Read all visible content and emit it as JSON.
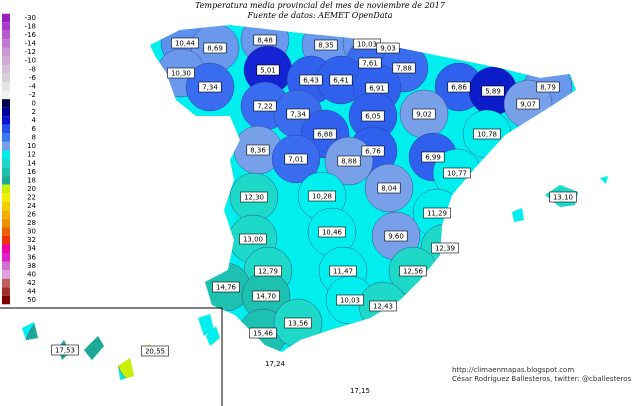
{
  "header": {
    "title": "Temperatura media provincial del mes de noviembre de 2017",
    "subtitle": "Fuente de datos: AEMET OpenData"
  },
  "legend": [
    {
      "value": -30,
      "color": "#9a1fc0"
    },
    {
      "value": -18,
      "color": "#a83cc8"
    },
    {
      "value": -16,
      "color": "#b85ad0"
    },
    {
      "value": -14,
      "color": "#c478d4"
    },
    {
      "value": -12,
      "color": "#cc94d6"
    },
    {
      "value": -10,
      "color": "#d2acd6"
    },
    {
      "value": -8,
      "color": "#d6c0d6"
    },
    {
      "value": -6,
      "color": "#d8d0d8"
    },
    {
      "value": -4,
      "color": "#e4e4e4"
    },
    {
      "value": -2,
      "color": "#f2f2f2"
    },
    {
      "value": 0,
      "color": "#00004a"
    },
    {
      "value": 2,
      "color": "#00009c"
    },
    {
      "value": 4,
      "color": "#0a14d2"
    },
    {
      "value": 6,
      "color": "#2450ee"
    },
    {
      "value": 8,
      "color": "#3c78f0"
    },
    {
      "value": 10,
      "color": "#78a0e8"
    },
    {
      "value": 12,
      "color": "#00eeee"
    },
    {
      "value": 14,
      "color": "#1ed8c8"
    },
    {
      "value": 16,
      "color": "#1ec0b0"
    },
    {
      "value": 18,
      "color": "#20a896"
    },
    {
      "value": 20,
      "color": "#c8f000"
    },
    {
      "value": 22,
      "color": "#f0f000"
    },
    {
      "value": 24,
      "color": "#f0d000"
    },
    {
      "value": 26,
      "color": "#f0b000"
    },
    {
      "value": 28,
      "color": "#f09000"
    },
    {
      "value": 30,
      "color": "#f06000"
    },
    {
      "value": 32,
      "color": "#f03000"
    },
    {
      "value": 34,
      "color": "#f000a0"
    },
    {
      "value": 36,
      "color": "#e020c8"
    },
    {
      "value": 38,
      "color": "#d070d0"
    },
    {
      "value": 40,
      "color": "#e0a0e0"
    },
    {
      "value": 42,
      "color": "#c06060"
    },
    {
      "value": 44,
      "color": "#a03030"
    },
    {
      "value": 50,
      "color": "#800000"
    }
  ],
  "provinces": [
    {
      "label": "10,44",
      "color": "#5c90ee"
    },
    {
      "label": "8,69",
      "color": "#6a98ec"
    },
    {
      "label": "8,48",
      "color": "#6a98ec"
    },
    {
      "label": "8,35",
      "color": "#6a98ec"
    },
    {
      "label": "10,03",
      "color": "#6a98ec"
    },
    {
      "label": "9,03",
      "color": "#6a98ec"
    },
    {
      "label": "10,30",
      "color": "#6a98ec"
    },
    {
      "label": "5,01",
      "color": "#1424d4"
    },
    {
      "label": "7,61",
      "color": "#3a6cf0"
    },
    {
      "label": "7,34",
      "color": "#3a6cf0"
    },
    {
      "label": "6,43",
      "color": "#3060ee"
    },
    {
      "label": "6,41",
      "color": "#3060ee"
    },
    {
      "label": "7,88",
      "color": "#3a6cf0"
    },
    {
      "label": "6,86",
      "color": "#3060ee"
    },
    {
      "label": "5,89",
      "color": "#0c1cc8"
    },
    {
      "label": "8,79",
      "color": "#6a98ec"
    },
    {
      "label": "6,91",
      "color": "#3060ee"
    },
    {
      "label": "9,07",
      "color": "#78a0e8"
    },
    {
      "label": "7,22",
      "color": "#3a6cf0"
    },
    {
      "label": "7,34",
      "color": "#3a6cf0"
    },
    {
      "label": "6,05",
      "color": "#3060ee"
    },
    {
      "label": "9,02",
      "color": "#78a0e8"
    },
    {
      "label": "6,88",
      "color": "#3060ee"
    },
    {
      "label": "10,78",
      "color": "#00eeee"
    },
    {
      "label": "8,36",
      "color": "#78a0e8"
    },
    {
      "label": "7,01",
      "color": "#3a6cf0"
    },
    {
      "label": "6,76",
      "color": "#3060ee"
    },
    {
      "label": "6,99",
      "color": "#3060ee"
    },
    {
      "label": "8,88",
      "color": "#78a0e8"
    },
    {
      "label": "10,77",
      "color": "#00eeee"
    },
    {
      "label": "8,04",
      "color": "#78a0e8"
    },
    {
      "label": "13,10",
      "color": "#1ed8c8"
    },
    {
      "label": "12,30",
      "color": "#1ed8c8"
    },
    {
      "label": "10,28",
      "color": "#00eeee"
    },
    {
      "label": "11,29",
      "color": "#00eeee"
    },
    {
      "label": "10,46",
      "color": "#00eeee"
    },
    {
      "label": "9,60",
      "color": "#78a0e8"
    },
    {
      "label": "13,00",
      "color": "#1ed8c8"
    },
    {
      "label": "12,39",
      "color": "#1ed8c8"
    },
    {
      "label": "12,79",
      "color": "#1ed8c8"
    },
    {
      "label": "11,47",
      "color": "#00eeee"
    },
    {
      "label": "12,56",
      "color": "#1ed8c8"
    },
    {
      "label": "14,76",
      "color": "#1ec0b0"
    },
    {
      "label": "14,70",
      "color": "#1ec0b0"
    },
    {
      "label": "10,03",
      "color": "#00eeee"
    },
    {
      "label": "12,43",
      "color": "#1ed8c8"
    },
    {
      "label": "15,46",
      "color": "#1ec0b0"
    },
    {
      "label": "13,56",
      "color": "#1ed8c8"
    },
    {
      "label": "17,53",
      "color": "#20a896"
    },
    {
      "label": "20,55",
      "color": "#c8f000"
    }
  ],
  "ceuta": "17,24",
  "melilla": "17,15",
  "credits": [
    "http://climaenmapas.blogspot.com",
    "César Rodríguez Ballesteros, twitter: @cballesteros"
  ]
}
